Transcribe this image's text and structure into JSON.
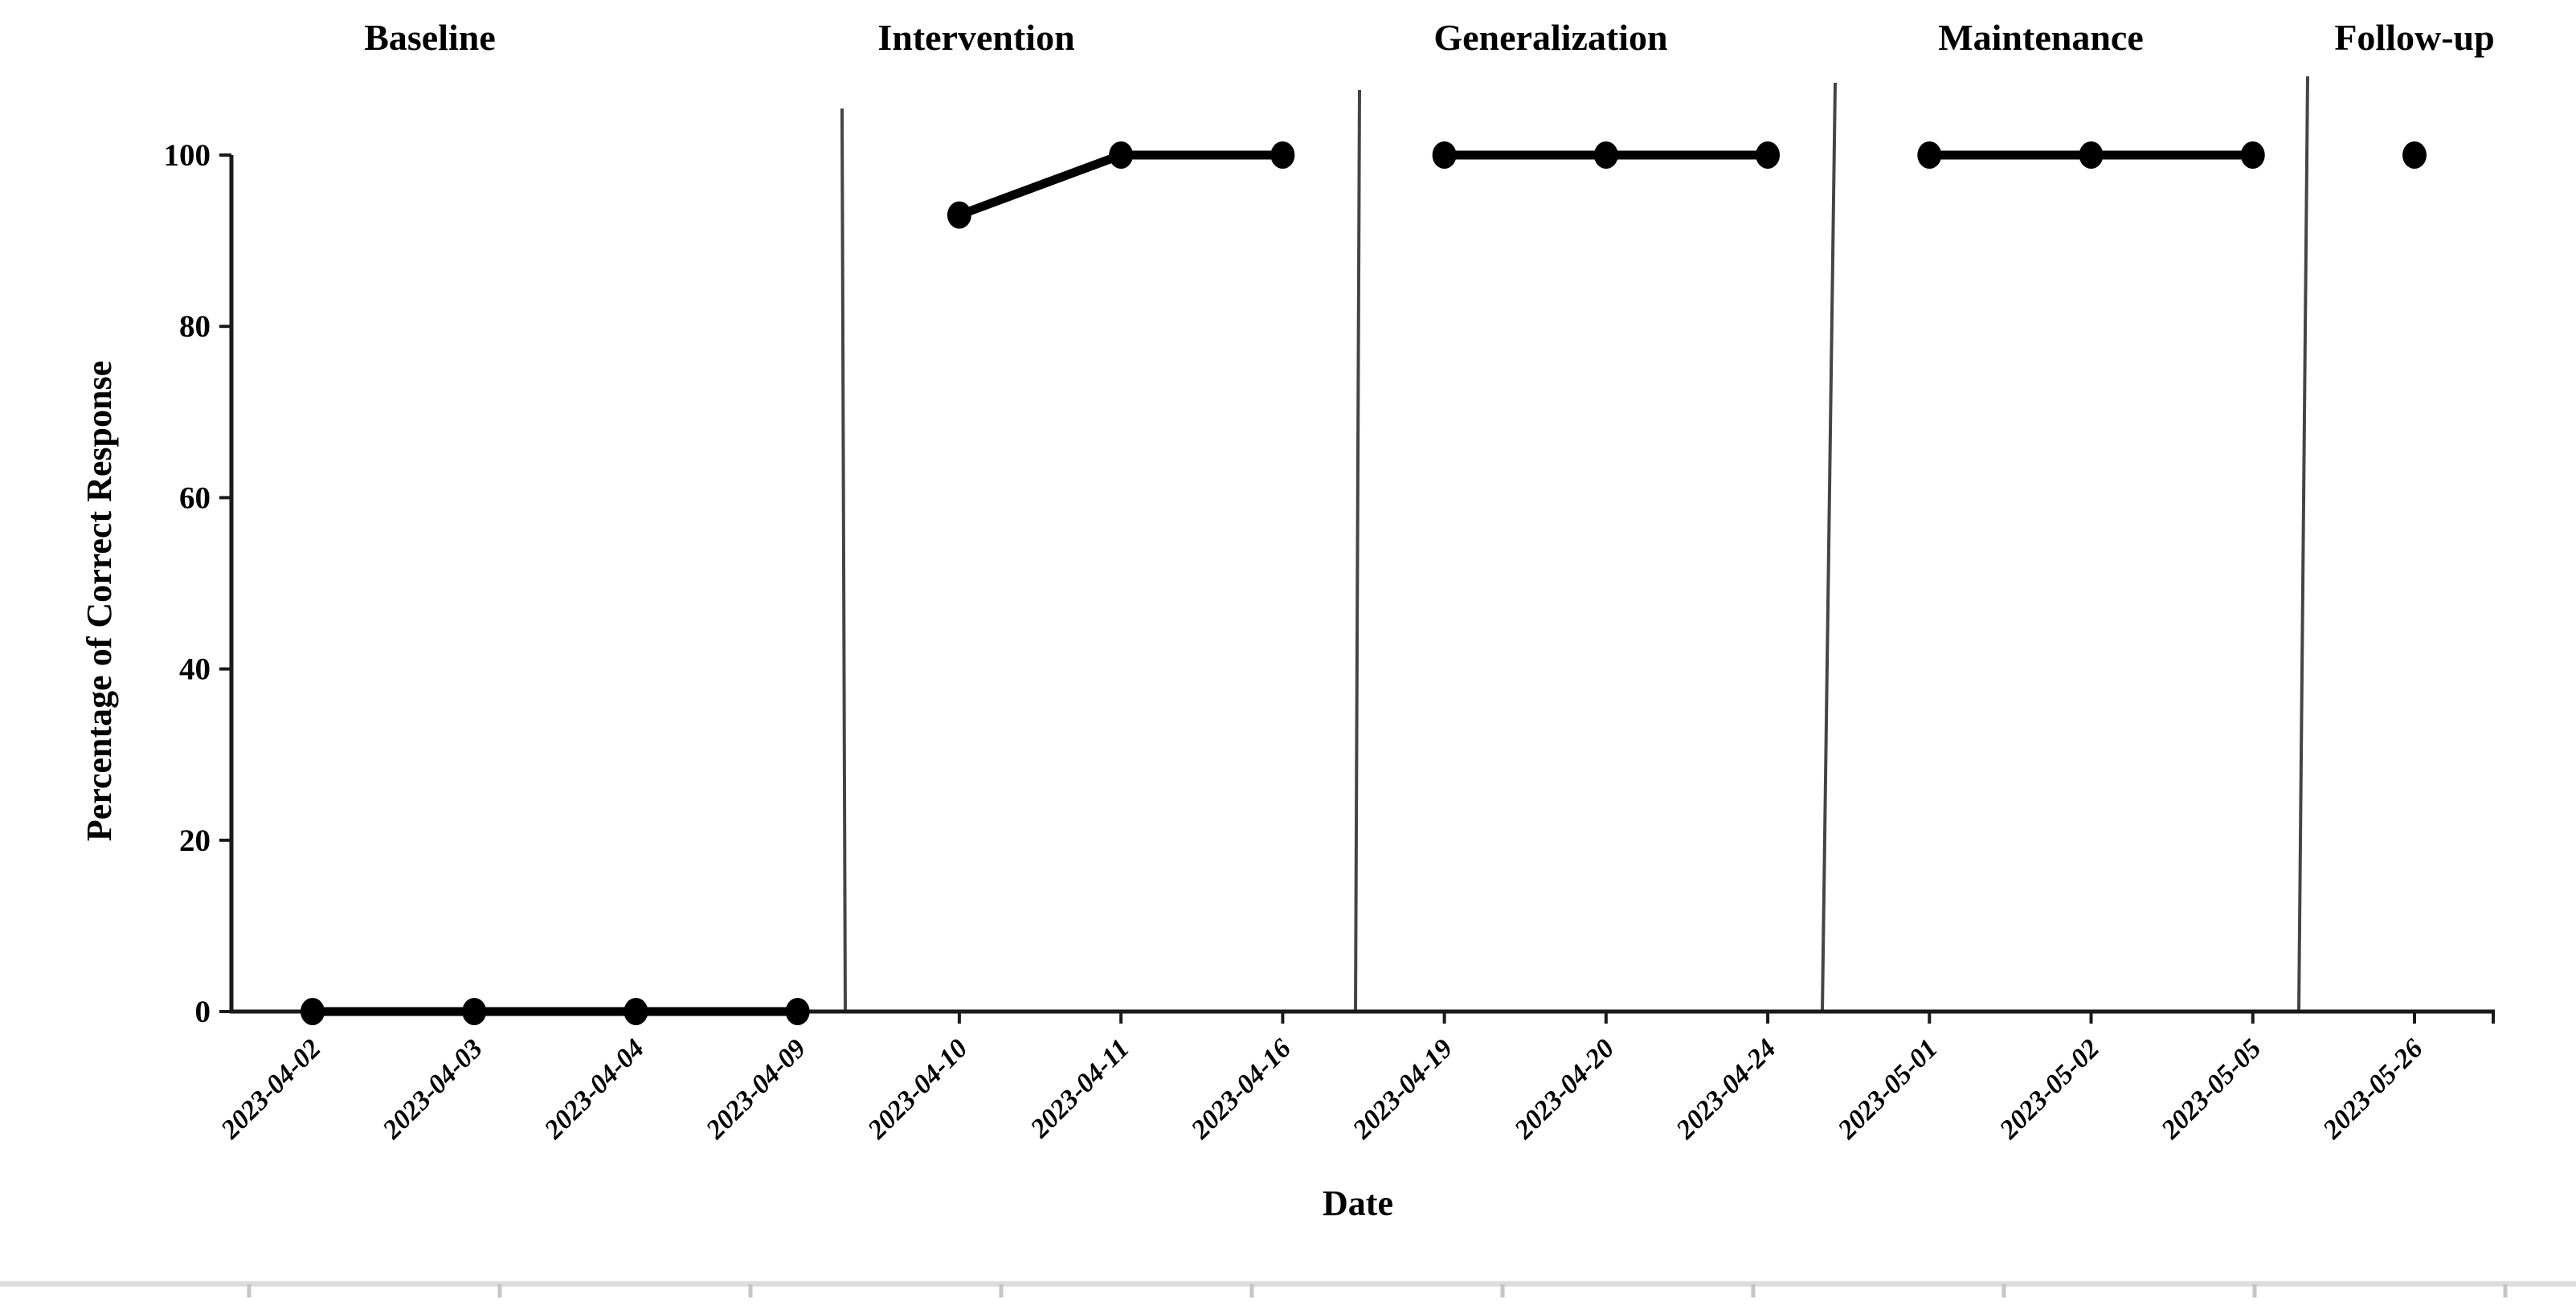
{
  "chart_data": {
    "type": "line",
    "title": "",
    "xlabel": "Date",
    "ylabel": "Percentage of Correct Response",
    "ylim": [
      0,
      100
    ],
    "yticks": [
      0,
      20,
      40,
      60,
      80,
      100
    ],
    "grid": false,
    "legend": false,
    "marker": "circle",
    "categories": [
      "2023-04-02",
      "2023-04-03",
      "2023-04-04",
      "2023-04-09",
      "2023-04-10",
      "2023-04-11",
      "2023-04-16",
      "2023-04-19",
      "2023-04-20",
      "2023-04-24",
      "2023-05-01",
      "2023-05-02",
      "2023-05-05",
      "2023-05-26"
    ],
    "phases": [
      {
        "label": "Baseline",
        "categories": [
          "2023-04-02",
          "2023-04-03",
          "2023-04-04",
          "2023-04-09"
        ],
        "values": [
          0,
          0,
          0,
          0
        ]
      },
      {
        "label": "Intervention",
        "categories": [
          "2023-04-10",
          "2023-04-11",
          "2023-04-16"
        ],
        "values": [
          93,
          100,
          100
        ]
      },
      {
        "label": "Generalization",
        "categories": [
          "2023-04-19",
          "2023-04-20",
          "2023-04-24"
        ],
        "values": [
          100,
          100,
          100
        ]
      },
      {
        "label": "Maintenance",
        "categories": [
          "2023-05-01",
          "2023-05-02",
          "2023-05-05"
        ],
        "values": [
          100,
          100,
          100
        ]
      },
      {
        "label": "Follow-up",
        "categories": [
          "2023-05-26"
        ],
        "values": [
          100
        ]
      }
    ],
    "phase_dividers_between": [
      [
        "2023-04-09",
        "2023-04-10"
      ],
      [
        "2023-04-16",
        "2023-04-19"
      ],
      [
        "2023-04-24",
        "2023-05-01"
      ],
      [
        "2023-05-05",
        "2023-05-26"
      ]
    ],
    "colors": {
      "series": "#000000",
      "axis": "#1a1a1a",
      "phase_divider": "#454545",
      "bottom_ruler_line": "#dcdcdc",
      "bottom_ruler_tick": "#c6c6c6"
    }
  }
}
